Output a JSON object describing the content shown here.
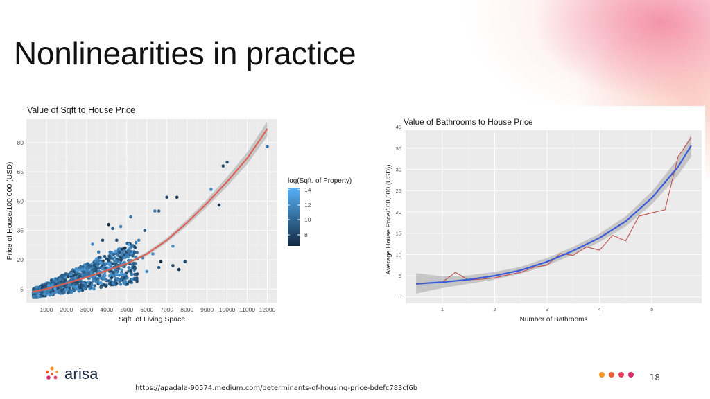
{
  "slide": {
    "title": "Nonlinearities in practice",
    "source_url": "https://apadala-90574.medium.com/determinants-of-housing-price-bdefc783cf6b",
    "page_number": "18",
    "logo_text": "arisa",
    "colors": {
      "accent_dots": [
        "#f39322",
        "#ec5f3c",
        "#e53c5c",
        "#d92f6e"
      ],
      "logo_dots": [
        "#f39322",
        "#ec5f3c",
        "#d92f6e"
      ]
    }
  },
  "chart_data": [
    {
      "type": "scatter",
      "title": "Value of Sqft to House Price",
      "xlabel": "Sqft. of Living Space",
      "ylabel": "Price of House/100,000 (USD)",
      "xlim": [
        0,
        12500
      ],
      "ylim": [
        -2,
        92
      ],
      "xticks": [
        1000,
        2000,
        3000,
        4000,
        5000,
        6000,
        7000,
        8000,
        9000,
        10000,
        11000,
        12000
      ],
      "xtick_labels": [
        "1000",
        "2000",
        "3000",
        "4000",
        "5000",
        "6000",
        "7000",
        "8000",
        "9000",
        "10000",
        "11000",
        "12000"
      ],
      "yticks": [
        5,
        20,
        35,
        50,
        65,
        80
      ],
      "ytick_labels": [
        "5",
        "20",
        "35",
        "50",
        "65",
        "80"
      ],
      "grid": true,
      "panel_background": "#ebebeb",
      "legend": {
        "title": "log(Sqft. of Property)",
        "ticks": [
          "14",
          "12",
          "10",
          "8"
        ],
        "placement": "right",
        "low_color": "#132b43",
        "high_color": "#56b1f7"
      },
      "fit_line": {
        "color": "#e05a4f",
        "x": [
          300,
          1000,
          2000,
          3000,
          4000,
          5000,
          6000,
          7000,
          8000,
          9000,
          10000,
          11000,
          12000
        ],
        "y": [
          3.5,
          5,
          8,
          11,
          14.5,
          18,
          23,
          30,
          39,
          49,
          60,
          72,
          87
        ]
      },
      "points": [
        [
          9600,
          48
        ],
        [
          9800,
          68
        ],
        [
          10000,
          70
        ],
        [
          12000,
          78
        ],
        [
          9200,
          56
        ],
        [
          7500,
          52
        ],
        [
          7000,
          52
        ],
        [
          6600,
          45
        ],
        [
          6400,
          45
        ],
        [
          7300,
          27
        ],
        [
          6700,
          19
        ],
        [
          7900,
          19
        ],
        [
          5900,
          35
        ],
        [
          5200,
          42
        ],
        [
          4700,
          37
        ],
        [
          4100,
          38
        ],
        [
          3800,
          30
        ],
        [
          4300,
          36
        ],
        [
          5600,
          30
        ],
        [
          6300,
          23
        ],
        [
          7600,
          15
        ],
        [
          7300,
          17
        ],
        [
          6600,
          16
        ],
        [
          5800,
          21
        ],
        [
          6000,
          14
        ],
        [
          4900,
          26
        ],
        [
          4500,
          30
        ],
        [
          5300,
          22
        ],
        [
          3600,
          24
        ],
        [
          3300,
          28
        ]
      ]
    },
    {
      "type": "line",
      "title": "Value of Bathrooms to House Price",
      "xlabel": "Number of Bathrooms",
      "ylabel": "Average House Price/100,000 (USD))",
      "xlim": [
        0.3,
        5.95
      ],
      "ylim": [
        -1.5,
        40.5
      ],
      "xticks": [
        1,
        2,
        3,
        4,
        5
      ],
      "xtick_labels": [
        "1",
        "2",
        "3",
        "4",
        "5"
      ],
      "yticks": [
        0,
        5,
        10,
        15,
        20,
        25,
        30,
        35,
        40
      ],
      "ytick_labels": [
        "0",
        "5",
        "10",
        "15",
        "20",
        "25",
        "30",
        "35",
        "40"
      ],
      "grid": true,
      "panel_background": "#ebebeb",
      "series": [
        {
          "color": "#c0504d",
          "x": [
            0.5,
            1.0,
            1.25,
            1.5,
            1.75,
            2.0,
            2.25,
            2.5,
            2.75,
            3.0,
            3.25,
            3.5,
            3.75,
            4.0,
            4.25,
            4.5,
            4.75,
            5.0,
            5.25,
            5.5,
            5.75
          ],
          "y": [
            3,
            3.5,
            5.8,
            4.0,
            4.2,
            4.5,
            5.2,
            5.8,
            7.0,
            7.5,
            10.2,
            9.8,
            11.8,
            11.0,
            14.5,
            13.2,
            19.0,
            19.8,
            20.5,
            33.0,
            37.5
          ]
        },
        {
          "color": "#3b5bdb",
          "x": [
            0.5,
            1.0,
            1.5,
            2.0,
            2.5,
            3.0,
            3.5,
            4.0,
            4.5,
            5.0,
            5.5,
            5.75
          ],
          "y": [
            3.1,
            3.5,
            4.1,
            5.0,
            6.3,
            8.3,
            10.9,
            13.9,
            17.8,
            23.3,
            30.6,
            35.6
          ]
        }
      ],
      "confidence_band": {
        "x": [
          0.5,
          1.0,
          1.5,
          2.0,
          2.5,
          3.0,
          3.5,
          4.0,
          4.5,
          5.0,
          5.5,
          5.75
        ],
        "upper": [
          5.6,
          4.9,
          5.1,
          5.9,
          7.1,
          9.2,
          11.8,
          14.9,
          19.0,
          24.8,
          32.6,
          38.2
        ],
        "lower": [
          0.8,
          2.1,
          3.1,
          4.1,
          5.5,
          7.4,
          10.0,
          12.9,
          16.6,
          21.8,
          28.6,
          33.0
        ]
      }
    }
  ]
}
